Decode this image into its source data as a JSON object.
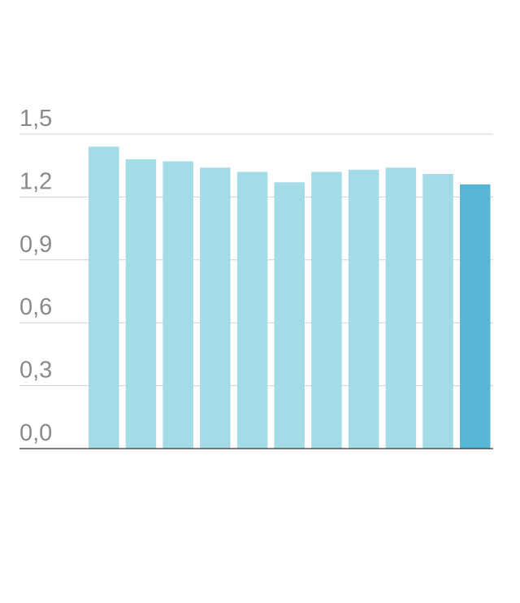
{
  "chart_data": {
    "type": "bar",
    "title": "",
    "xlabel": "",
    "ylabel": "",
    "categories": [
      "",
      "",
      "",
      "",
      "",
      "",
      "",
      "",
      "",
      "",
      ""
    ],
    "values": [
      1.44,
      1.38,
      1.37,
      1.34,
      1.32,
      1.27,
      1.32,
      1.33,
      1.34,
      1.31,
      1.26
    ],
    "ylim": [
      0,
      1.5
    ],
    "yticks": [
      "0,0",
      "0,3",
      "0,6",
      "0,9",
      "1,2",
      "1,5"
    ],
    "ytick_values": [
      0,
      0.3,
      0.6,
      0.9,
      1.2,
      1.5
    ],
    "grid": true,
    "legend": "none",
    "colors": {
      "bar": "#a3dce7",
      "highlight_bar": "#57b6d6",
      "grid": "#d0d0d0",
      "axis": "#333333",
      "tick_text": "#8a8a8a"
    },
    "highlight_index": 10
  }
}
